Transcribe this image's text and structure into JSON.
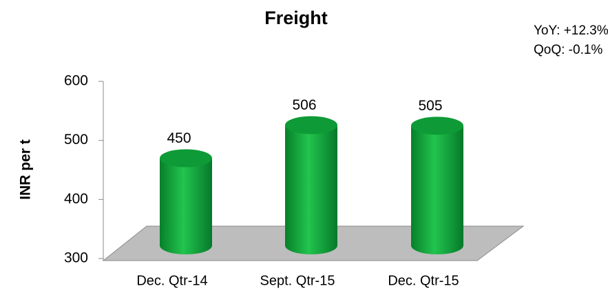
{
  "chart_data": {
    "type": "cylinder",
    "title": "Freight",
    "annotations": [
      "YoY: +12.3%",
      "QoQ: -0.1%"
    ],
    "y_label": "INR per t",
    "categories": [
      "Dec. Qtr-14",
      "Sept. Qtr-15",
      "Dec. Qtr-15"
    ],
    "values": [
      450,
      506,
      505
    ],
    "color": "#12a83c",
    "ylim": [
      300,
      600
    ],
    "yticks": [
      300,
      400,
      500,
      600
    ]
  }
}
